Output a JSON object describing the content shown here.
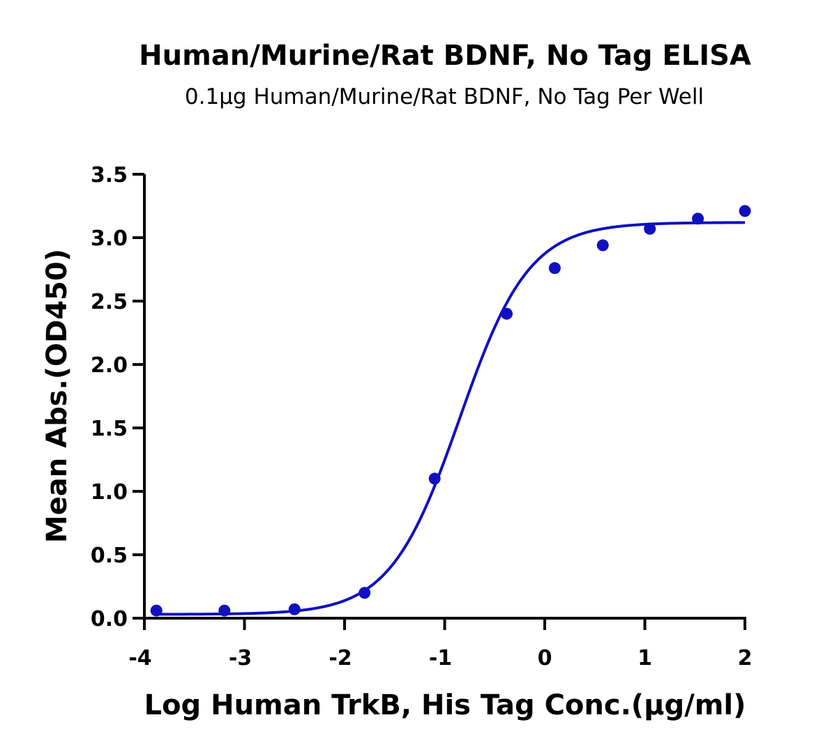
{
  "chart_data": {
    "type": "scatter",
    "title": "Human/Murine/Rat BDNF, No Tag ELISA",
    "subtitle": "0.1µg Human/Murine/Rat BDNF, No Tag Per Well",
    "xlabel": "Log Human TrkB, His Tag Conc.(µg/ml)",
    "ylabel": "Mean Abs.(OD450)",
    "xlim": [
      -4,
      2
    ],
    "ylim": [
      0,
      3.5
    ],
    "x_ticks": [
      -4,
      -3,
      -2,
      -1,
      0,
      1,
      2
    ],
    "x_tick_labels": [
      "-4",
      "-3",
      "-2",
      "-1",
      "0",
      "1",
      "2"
    ],
    "y_ticks": [
      0,
      0.5,
      1.0,
      1.5,
      2.0,
      2.5,
      3.0,
      3.5
    ],
    "y_tick_labels": [
      "0.0",
      "0.5",
      "1.0",
      "1.5",
      "2.0",
      "2.5",
      "3.0",
      "3.5"
    ],
    "grid": false,
    "color": "#1010C0",
    "series": [
      {
        "x": [
          -3.88,
          -3.2,
          -2.5,
          -1.8,
          -1.1,
          -0.38,
          0.1,
          0.58,
          1.05,
          1.53,
          2.0
        ],
        "y": [
          0.06,
          0.06,
          0.07,
          0.2,
          1.1,
          2.4,
          2.76,
          2.94,
          3.07,
          3.15,
          3.21
        ]
      }
    ],
    "fit_curve": {
      "model": "4PL",
      "bottom": 0.03,
      "top": 3.12,
      "log_ec50": -0.85,
      "hill_slope": 1.25,
      "x_range": [
        -3.88,
        2.0
      ]
    }
  }
}
